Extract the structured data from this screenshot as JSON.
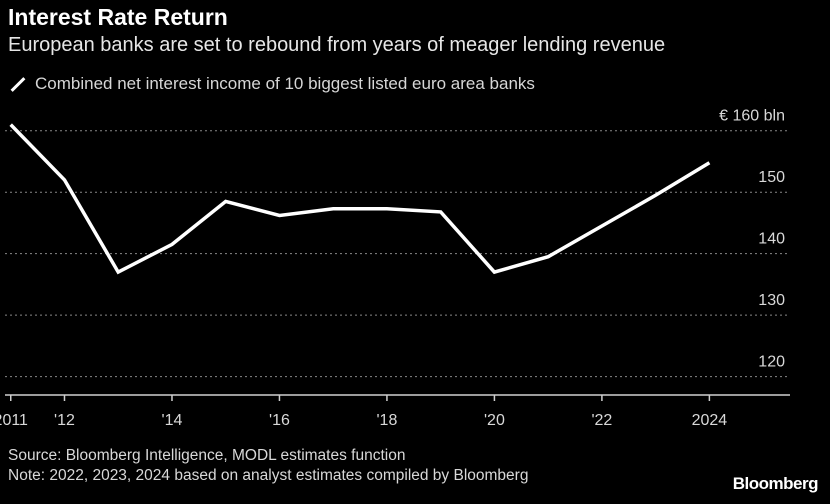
{
  "title": "Interest Rate Return",
  "subtitle": "European banks are set to rebound from years of meager lending revenue",
  "source": "Source: Bloomberg Intelligence, MODL estimates function",
  "note": "Note: 2022, 2023, 2024 based on analyst estimates compiled by Bloomberg",
  "brand": "Bloomberg",
  "chart_data": {
    "type": "line",
    "series": [
      {
        "name": "Combined net interest income of 10 biggest listed euro area banks",
        "color": "#ffffff",
        "x": [
          2011,
          2012,
          2013,
          2014,
          2015,
          2016,
          2017,
          2018,
          2019,
          2020,
          2021,
          2022,
          2023,
          2024
        ],
        "values": [
          161,
          152,
          137,
          141.5,
          148.5,
          146.2,
          147.3,
          147.3,
          146.8,
          137,
          139.5,
          144.5,
          149.5,
          154.8
        ]
      }
    ],
    "ylim": [
      117,
      165
    ],
    "yticks": [
      120,
      130,
      140,
      150,
      160
    ],
    "ytick_labels": [
      "120",
      "130",
      "140",
      "150",
      "€ 160 bln"
    ],
    "xlim": [
      2010.8,
      2025.5
    ],
    "xticks": [
      2011,
      2012,
      2014,
      2016,
      2018,
      2020,
      2022,
      2024
    ],
    "xtick_labels": [
      "2011",
      "'12",
      "'14",
      "'16",
      "'18",
      "'20",
      "'22",
      "2024"
    ],
    "grid": true,
    "legend_position": "top-left"
  }
}
